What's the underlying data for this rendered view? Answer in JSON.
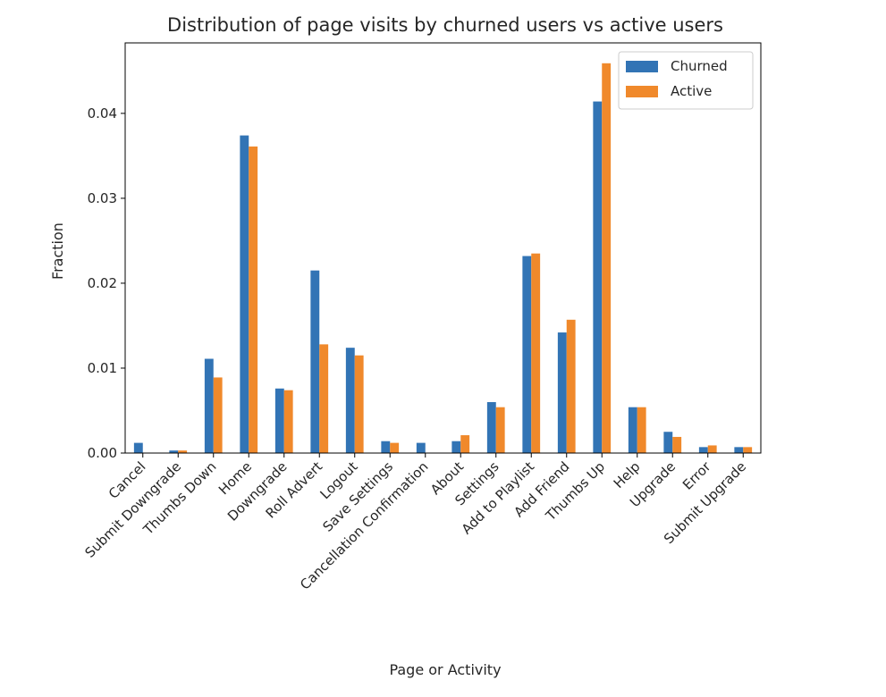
{
  "chart_data": {
    "type": "bar",
    "title": "Distribution of page visits by churned users vs active users",
    "xlabel": "Page or Activity",
    "ylabel": "Fraction",
    "ylim": [
      0,
      0.0483
    ],
    "yticks": [
      0.0,
      0.01,
      0.02,
      0.03,
      0.04
    ],
    "ytick_labels": [
      "0.00",
      "0.01",
      "0.02",
      "0.03",
      "0.04"
    ],
    "categories": [
      "Cancel",
      "Submit Downgrade",
      "Thumbs Down",
      "Home",
      "Downgrade",
      "Roll Advert",
      "Logout",
      "Save Settings",
      "Cancellation Confirmation",
      "About",
      "Settings",
      "Add to Playlist",
      "Add Friend",
      "Thumbs Up",
      "Help",
      "Upgrade",
      "Error",
      "Submit Upgrade"
    ],
    "series": [
      {
        "name": "Churned",
        "color": "#3274b5",
        "values": [
          0.0012,
          0.0003,
          0.0111,
          0.0374,
          0.0076,
          0.0215,
          0.0124,
          0.0014,
          0.0012,
          0.0014,
          0.006,
          0.0232,
          0.0142,
          0.0414,
          0.0054,
          0.0025,
          0.0007,
          0.0007
        ]
      },
      {
        "name": "Active",
        "color": "#f0892b",
        "values": [
          0.0,
          0.0003,
          0.0089,
          0.0361,
          0.0074,
          0.0128,
          0.0115,
          0.0012,
          0.0,
          0.0021,
          0.0054,
          0.0235,
          0.0157,
          0.0459,
          0.0054,
          0.0019,
          0.0009,
          0.0007
        ]
      }
    ],
    "legend_position": "top-right",
    "grid": false
  }
}
